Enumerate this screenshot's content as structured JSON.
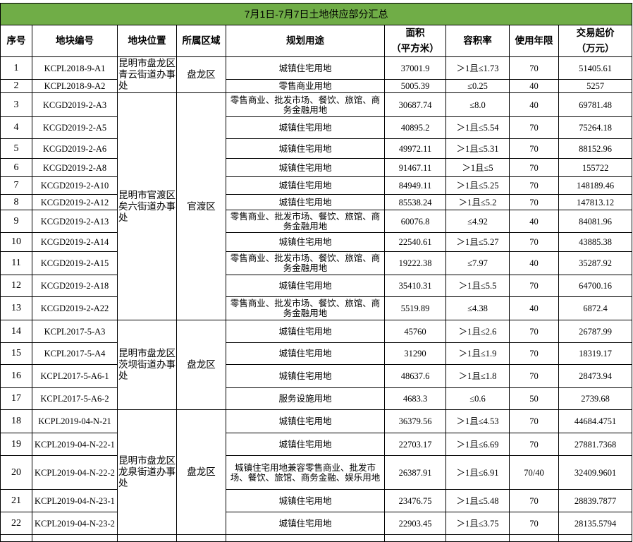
{
  "title": "7月1日-7月7日土地供应部分汇总",
  "header_color": "#70ad47",
  "columns": [
    "序号",
    "地块编号",
    "地块位置",
    "所属区域",
    "规划用途",
    "面积\n（平方米）",
    "容积率",
    "使用年限",
    "交易起价\n（万元）"
  ],
  "groups": [
    {
      "location": "昆明市盘龙区青云街道办事处",
      "district": "盘龙区",
      "start": 0,
      "count": 2
    },
    {
      "location": "昆明市官渡区矣六街道办事处",
      "district": "官渡区",
      "start": 2,
      "count": 11
    },
    {
      "location": "昆明市盘龙区茨坝街道办事处",
      "district": "盘龙区",
      "start": 13,
      "count": 4
    },
    {
      "location": "昆明市盘龙区龙泉街道办事处",
      "district": "盘龙区",
      "start": 17,
      "count": 5
    }
  ],
  "rows": [
    {
      "no": "1",
      "code": "KCPL2018-9-A1",
      "use": "城镇住宅用地",
      "area": "37001.9",
      "far": "＞1且≤1.73",
      "years": "70",
      "price": "51405.61"
    },
    {
      "no": "2",
      "code": "KCPL2018-9-A2",
      "use": "零售商业用地",
      "area": "5005.39",
      "far": "≤0.25",
      "years": "40",
      "price": "5257"
    },
    {
      "no": "3",
      "code": "KCGD2019-2-A3",
      "use": "零售商业、批发市场、餐饮、旅馆、商务金融用地",
      "area": "30687.74",
      "far": "≤8.0",
      "years": "40",
      "price": "69781.48"
    },
    {
      "no": "4",
      "code": "KCGD2019-2-A5",
      "use": "城镇住宅用地",
      "area": "40895.2",
      "far": "＞1且≤5.54",
      "years": "70",
      "price": "75264.18"
    },
    {
      "no": "5",
      "code": "KCGD2019-2-A6",
      "use": "城镇住宅用地",
      "area": "49972.11",
      "far": "＞1且≤5.31",
      "years": "70",
      "price": "88152.96"
    },
    {
      "no": "6",
      "code": "KCGD2019-2-A8",
      "use": "城镇住宅用地",
      "area": "91467.11",
      "far": "＞1且≤5",
      "years": "70",
      "price": "155722"
    },
    {
      "no": "7",
      "code": "KCGD2019-2-A10",
      "use": "城镇住宅用地",
      "area": "84949.11",
      "far": "＞1且≤5.25",
      "years": "70",
      "price": "148189.46"
    },
    {
      "no": "8",
      "code": "KCGD2019-2-A12",
      "use": "城镇住宅用地",
      "area": "85538.24",
      "far": "＞1且≤5.2",
      "years": "70",
      "price": "147813.12"
    },
    {
      "no": "9",
      "code": "KCGD2019-2-A13",
      "use": "零售商业、批发市场、餐饮、旅馆、商务金融用地",
      "area": "60076.8",
      "far": "≤4.92",
      "years": "40",
      "price": "84081.96"
    },
    {
      "no": "10",
      "code": "KCGD2019-2-A14",
      "use": "城镇住宅用地",
      "area": "22540.61",
      "far": "＞1且≤5.27",
      "years": "70",
      "price": "43885.38"
    },
    {
      "no": "11",
      "code": "KCGD2019-2-A15",
      "use": "零售商业、批发市场、餐饮、旅馆、商务金融用地",
      "area": "19222.38",
      "far": "≤7.97",
      "years": "40",
      "price": "35287.92"
    },
    {
      "no": "12",
      "code": "KCGD2019-2-A18",
      "use": "城镇住宅用地",
      "area": "35410.31",
      "far": "＞1且≤5.5",
      "years": "70",
      "price": "64700.16"
    },
    {
      "no": "13",
      "code": "KCGD2019-2-A22",
      "use": "零售商业、批发市场、餐饮、旅馆、商务金融用地",
      "area": "5519.89",
      "far": "≤4.38",
      "years": "40",
      "price": "6872.4"
    },
    {
      "no": "14",
      "code": "KCPL2017-5-A3",
      "use": "城镇住宅用地",
      "area": "45760",
      "far": "＞1且≤2.6",
      "years": "70",
      "price": "26787.99"
    },
    {
      "no": "15",
      "code": "KCPL2017-5-A4",
      "use": "城镇住宅用地",
      "area": "31290",
      "far": "＞1且≤1.9",
      "years": "70",
      "price": "18319.17"
    },
    {
      "no": "16",
      "code": "KCPL2017-5-A6-1",
      "use": "城镇住宅用地",
      "area": "48637.6",
      "far": "＞1且≤1.8",
      "years": "70",
      "price": "28473.94"
    },
    {
      "no": "17",
      "code": "KCPL2017-5-A6-2",
      "use": "服务设施用地",
      "area": "4683.3",
      "far": "≤0.6",
      "years": "50",
      "price": "2739.68"
    },
    {
      "no": "18",
      "code": "KCPL2019-04-N-21",
      "use": "城镇住宅用地",
      "area": "36379.56",
      "far": "＞1且≤4.53",
      "years": "70",
      "price": "44684.4751"
    },
    {
      "no": "19",
      "code": "KCPL2019-04-N-22-1",
      "use": "城镇住宅用地",
      "area": "22703.17",
      "far": "＞1且≤6.69",
      "years": "70",
      "price": "27881.7368"
    },
    {
      "no": "20",
      "code": "KCPL2019-04-N-22-2",
      "use": "城镇住宅用地兼容零售商业、批发市场、餐饮、旅馆、商务金融、娱乐用地",
      "area": "26387.91",
      "far": "＞1且≤6.91",
      "years": "70/40",
      "price": "32409.9601"
    },
    {
      "no": "21",
      "code": "KCPL2019-04-N-23-1",
      "use": "城镇住宅用地",
      "area": "23476.75",
      "far": "＞1且≤5.48",
      "years": "70",
      "price": "28839.7877"
    },
    {
      "no": "22",
      "code": "KCPL2019-04-N-23-2",
      "use": "城镇住宅用地",
      "area": "22903.45",
      "far": "＞1且≤3.75",
      "years": "70",
      "price": "28135.5794"
    }
  ]
}
